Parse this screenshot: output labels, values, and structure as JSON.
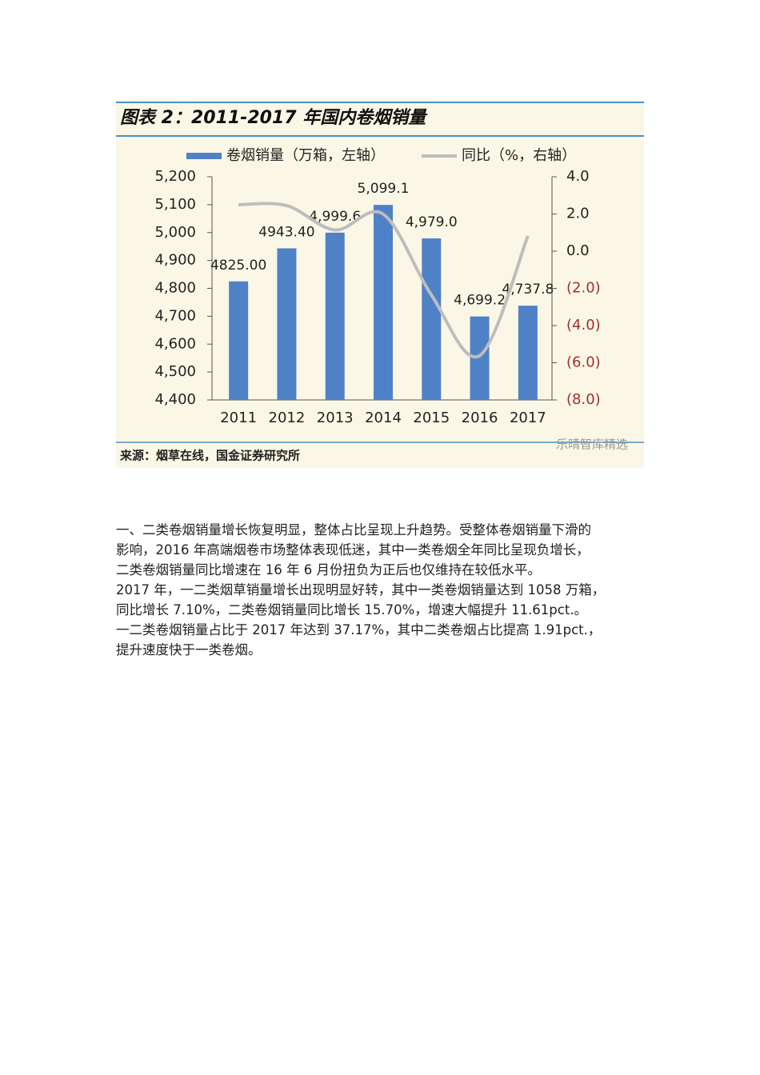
{
  "chart_data": {
    "type": "bar",
    "title": "图表 2：2011-2017 年国内卷烟销量",
    "categories": [
      "2011",
      "2012",
      "2013",
      "2014",
      "2015",
      "2016",
      "2017"
    ],
    "series": [
      {
        "name": "卷烟销量（万箱，左轴）",
        "color": "#4f81c7",
        "axis": "y",
        "values": [
          4825,
          4943.4,
          4999.6,
          5099.1,
          4979,
          4699.2,
          4737.8
        ],
        "value_labels": [
          "4825.00",
          "4943.40",
          "4,999.6",
          "5,099.1",
          "4,979.0",
          "4,699.2",
          "4,737.8"
        ]
      },
      {
        "name": "同比（%，右轴）",
        "color": "#bdbdbd",
        "axis": "y2",
        "type": "line",
        "values": [
          2.5,
          2.45,
          1.14,
          1.99,
          -2.36,
          -5.62,
          0.82
        ]
      }
    ],
    "ylim": [
      4400,
      5200
    ],
    "yticks": [
      {
        "value": 4400,
        "label": "4,400"
      },
      {
        "value": 4500,
        "label": "4,500"
      },
      {
        "value": 4600,
        "label": "4,600"
      },
      {
        "value": 4700,
        "label": "4,700"
      },
      {
        "value": 4800,
        "label": "4,800"
      },
      {
        "value": 4900,
        "label": "4,900"
      },
      {
        "value": 5000,
        "label": "5,000"
      },
      {
        "value": 5100,
        "label": "5,100"
      },
      {
        "value": 5200,
        "label": "5,200"
      }
    ],
    "y2lim": [
      -8,
      4
    ],
    "y2ticks": [
      {
        "value": -8,
        "label": "(8.0)"
      },
      {
        "value": -6,
        "label": "(6.0)"
      },
      {
        "value": -4,
        "label": "(4.0)"
      },
      {
        "value": -2,
        "label": "(2.0)"
      },
      {
        "value": 0,
        "label": "0.0"
      },
      {
        "value": 2,
        "label": "2.0"
      },
      {
        "value": 4,
        "label": "4.0"
      }
    ],
    "source": "来源：烟草在线，国金证券研究所",
    "watermark": "乐晴智库精选",
    "legend": "top"
  },
  "body": {
    "lines": [
      "一、二类卷烟销量增长恢复明显，整体占比呈现上升趋势。受整体卷烟销量下滑的",
      "影响，2016 年高端烟卷市场整体表现低迷，其中一类卷烟全年同比呈现负增长，",
      "二类卷烟销量同比增速在 16 年 6 月份扭负为正后也仅维持在较低水平。",
      "2017 年，一二类烟草销量增长出现明显好转，其中一类卷烟销量达到 1058 万箱，",
      "同比增长 7.10%，二类卷烟销量同比增长 15.70%，增速大幅提升 11.61pct.。",
      "一二类卷烟销量占比于 2017 年达到 37.17%，其中二类卷烟占比提高 1.91pct.，",
      "提升速度快于一类卷烟。"
    ]
  }
}
